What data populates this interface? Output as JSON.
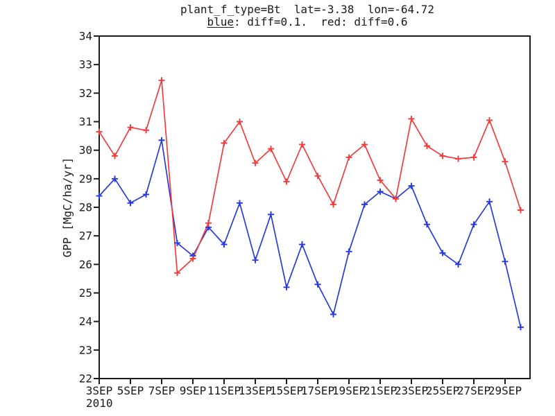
{
  "chart_data": {
    "type": "line",
    "title": "plant_f_type=Bt  lat=-3.38  lon=-64.72",
    "subtitle_parts": {
      "underlined": "blue",
      "rest": ": diff=0.1.  red: diff=0.6"
    },
    "ylabel": "GPP [MgC/ha/yr]",
    "ylim": [
      22,
      34
    ],
    "y_ticks": [
      22,
      23,
      24,
      25,
      26,
      27,
      28,
      29,
      30,
      31,
      32,
      33,
      34
    ],
    "x": [
      "3SEP",
      "4SEP",
      "5SEP",
      "6SEP",
      "7SEP",
      "8SEP",
      "9SEP",
      "10SEP",
      "11SEP",
      "12SEP",
      "13SEP",
      "14SEP",
      "15SEP",
      "16SEP",
      "17SEP",
      "18SEP",
      "19SEP",
      "20SEP",
      "21SEP",
      "22SEP",
      "23SEP",
      "24SEP",
      "25SEP",
      "26SEP",
      "27SEP",
      "28SEP",
      "29SEP",
      "30SEP"
    ],
    "x_tick_labels": [
      "3SEP",
      "5SEP",
      "7SEP",
      "9SEP",
      "11SEP",
      "13SEP",
      "15SEP",
      "17SEP",
      "19SEP",
      "21SEP",
      "23SEP",
      "25SEP",
      "27SEP",
      "29SEP"
    ],
    "x_tick_indices": [
      0,
      2,
      4,
      6,
      8,
      10,
      12,
      14,
      16,
      18,
      20,
      22,
      24,
      26
    ],
    "year_label": "2010",
    "grid": false,
    "axis_color": "#1a1a1a",
    "background_color": "#ffffff",
    "marker": "plus",
    "series": [
      {
        "id": "blue",
        "name": "blue: diff=0.1",
        "color": "#2638e0",
        "values": [
          28.4,
          29.0,
          28.15,
          28.45,
          30.35,
          26.75,
          26.3,
          27.3,
          26.7,
          28.15,
          26.15,
          27.75,
          25.2,
          26.7,
          25.3,
          24.25,
          26.45,
          28.1,
          28.55,
          28.3,
          28.75,
          27.4,
          26.4,
          26.0,
          27.4,
          28.2,
          26.1,
          23.8
        ]
      },
      {
        "id": "red",
        "name": "red: diff=0.6",
        "color": "#f23c3c",
        "values": [
          30.65,
          29.8,
          30.8,
          30.7,
          32.45,
          25.7,
          26.2,
          27.45,
          30.25,
          31.0,
          29.55,
          30.05,
          28.9,
          30.2,
          29.1,
          28.1,
          29.75,
          30.2,
          28.95,
          28.3,
          31.1,
          30.15,
          29.8,
          29.7,
          29.75,
          31.05,
          29.6,
          27.9
        ]
      }
    ]
  }
}
